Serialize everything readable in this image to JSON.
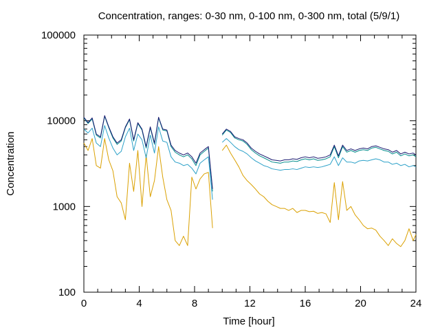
{
  "chart_data": {
    "type": "line",
    "title": "Concentration, ranges: 0-30 nm, 0-100 nm, 0-300 nm, total (5/9/1)",
    "xlabel": "Time [hour]",
    "ylabel": "Concentration",
    "xlim": [
      0,
      24
    ],
    "ylim": [
      100,
      100000
    ],
    "yscale": "log",
    "grid": false,
    "legend": "none",
    "x_ticks": [
      "0",
      "4",
      "8",
      "12",
      "16",
      "20",
      "24"
    ],
    "y_ticks": [
      "100",
      "1000",
      "10000",
      "100000"
    ],
    "colors": {
      "total": "#191970",
      "range_0_300": "#008b8b",
      "range_0_100": "#2aa0c8",
      "range_0_30": "#daa000"
    },
    "x": [
      0,
      0.3,
      0.6,
      0.9,
      1.2,
      1.5,
      1.8,
      2.1,
      2.4,
      2.7,
      3.0,
      3.3,
      3.6,
      3.9,
      4.2,
      4.5,
      4.8,
      5.1,
      5.4,
      5.7,
      6.0,
      6.3,
      6.6,
      6.9,
      7.2,
      7.5,
      7.8,
      8.1,
      8.4,
      8.7,
      9.0,
      9.3,
      10.0,
      10.3,
      10.6,
      10.9,
      11.2,
      11.5,
      11.8,
      12.1,
      12.4,
      12.7,
      13.0,
      13.3,
      13.6,
      13.9,
      14.2,
      14.5,
      14.8,
      15.1,
      15.4,
      15.7,
      16.0,
      16.3,
      16.6,
      16.9,
      17.2,
      17.5,
      17.8,
      18.1,
      18.4,
      18.7,
      19.0,
      19.3,
      19.6,
      19.9,
      20.2,
      20.5,
      20.8,
      21.1,
      21.4,
      21.7,
      22.0,
      22.3,
      22.6,
      22.9,
      23.2,
      23.5,
      23.8,
      24.0
    ],
    "series": [
      {
        "key": "total",
        "values": [
          11000,
          9500,
          10800,
          7000,
          6500,
          11500,
          8500,
          6500,
          5500,
          6000,
          8500,
          10500,
          6000,
          9500,
          8000,
          5000,
          8500,
          5500,
          11000,
          8000,
          7800,
          5200,
          4500,
          4200,
          4000,
          4200,
          3800,
          3200,
          4200,
          4600,
          5000,
          1600,
          7000,
          8000,
          7500,
          6500,
          6200,
          6000,
          5500,
          4800,
          4400,
          4100,
          3900,
          3700,
          3500,
          3450,
          3400,
          3500,
          3500,
          3600,
          3550,
          3700,
          3800,
          3700,
          3800,
          3650,
          3700,
          3800,
          4000,
          5200,
          3900,
          5200,
          4500,
          4700,
          4500,
          4700,
          4800,
          4700,
          5000,
          5100,
          4900,
          4700,
          4600,
          4300,
          4500,
          4100,
          4300,
          4100,
          4200,
          4000
        ]
      },
      {
        "key": "range_0_300",
        "values": [
          10800,
          9300,
          10500,
          6800,
          6300,
          11300,
          8300,
          6300,
          5300,
          5800,
          8300,
          10300,
          5800,
          9300,
          7800,
          4800,
          8300,
          5300,
          10800,
          7800,
          7600,
          5000,
          4300,
          4000,
          3800,
          4000,
          3600,
          3000,
          4000,
          4400,
          4800,
          1500,
          6800,
          7800,
          7300,
          6300,
          6000,
          5800,
          5300,
          4600,
          4200,
          3900,
          3700,
          3500,
          3300,
          3250,
          3200,
          3300,
          3300,
          3400,
          3350,
          3500,
          3600,
          3500,
          3600,
          3450,
          3500,
          3600,
          3800,
          5000,
          3700,
          5000,
          4300,
          4500,
          4300,
          4500,
          4600,
          4500,
          4800,
          4900,
          4700,
          4500,
          4400,
          4100,
          4300,
          3900,
          4100,
          3900,
          4000,
          3800
        ]
      },
      {
        "key": "range_0_100",
        "values": [
          8000,
          7200,
          8200,
          5500,
          5000,
          8800,
          6300,
          4800,
          4000,
          4400,
          6500,
          8200,
          4500,
          7000,
          6000,
          3700,
          6800,
          4200,
          8500,
          5800,
          5600,
          3800,
          3300,
          3200,
          3000,
          3100,
          2800,
          2400,
          3200,
          3500,
          3800,
          1200,
          5600,
          6200,
          5600,
          5000,
          4600,
          4400,
          4100,
          3700,
          3400,
          3200,
          3000,
          2900,
          2750,
          2700,
          2650,
          2700,
          2700,
          2750,
          2700,
          2800,
          2900,
          2850,
          2900,
          2850,
          2900,
          3000,
          3100,
          3800,
          3000,
          3700,
          3300,
          3300,
          3200,
          3400,
          3450,
          3400,
          3500,
          3600,
          3500,
          3300,
          3300,
          3100,
          3200,
          3000,
          3100,
          2900,
          3000,
          2900
        ]
      },
      {
        "key": "range_0_30",
        "values": [
          5500,
          4500,
          6200,
          3000,
          2800,
          6200,
          3500,
          2600,
          1300,
          1100,
          700,
          3200,
          1500,
          4500,
          1000,
          4000,
          1300,
          2000,
          5000,
          2200,
          1200,
          900,
          400,
          350,
          450,
          350,
          2200,
          1600,
          2100,
          2400,
          2500,
          560,
          4500,
          5200,
          4200,
          3500,
          2900,
          2300,
          2000,
          1800,
          1600,
          1400,
          1300,
          1150,
          1050,
          1000,
          950,
          950,
          900,
          950,
          850,
          900,
          900,
          870,
          880,
          830,
          850,
          820,
          650,
          1900,
          700,
          1950,
          900,
          1000,
          800,
          700,
          600,
          550,
          560,
          530,
          450,
          400,
          350,
          420,
          370,
          340,
          400,
          550,
          400,
          470
        ]
      }
    ]
  }
}
